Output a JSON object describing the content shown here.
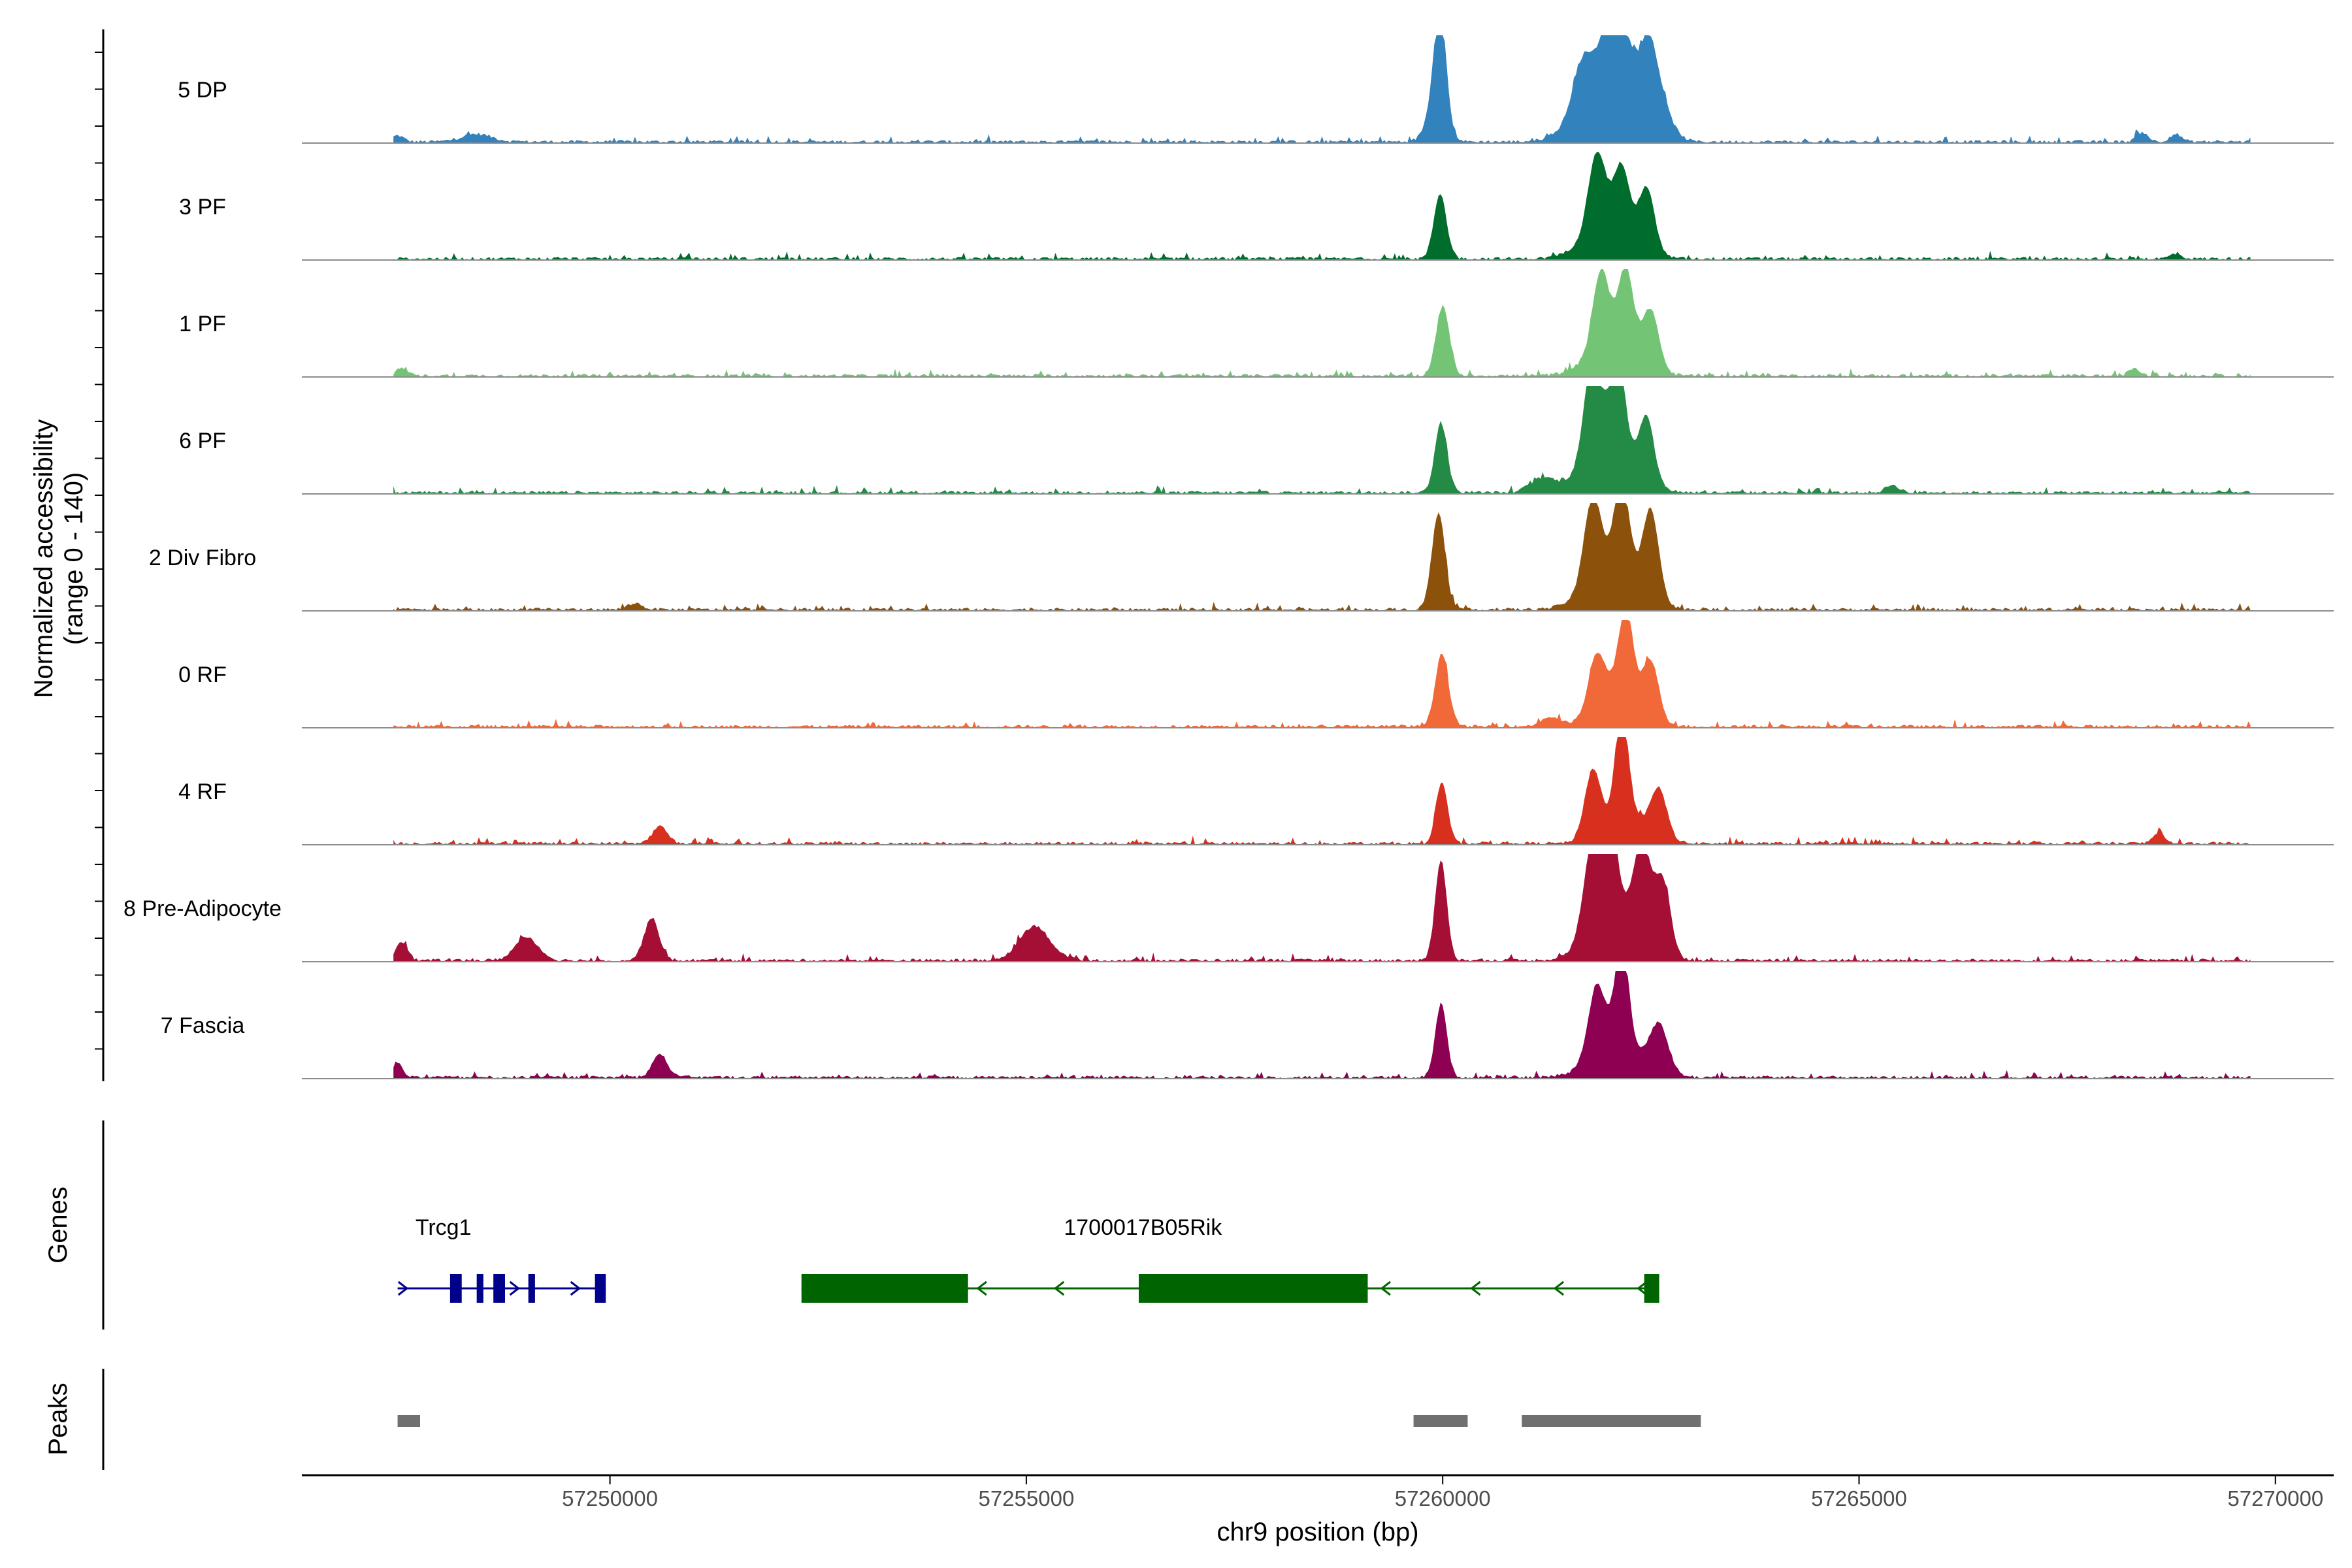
{
  "chart_data": {
    "type": "area",
    "title": "",
    "x_axis": {
      "label": "chr9 position (bp)",
      "range": [
        57246300,
        57270700
      ],
      "ticks": [
        57250000,
        57255000,
        57260000,
        57265000,
        57270000
      ],
      "tick_labels": [
        "57250000",
        "57255000",
        "57260000",
        "57265000",
        "57270000"
      ]
    },
    "y_axis": {
      "label_line1": "Normalized accessibility",
      "label_line2": "(range 0 - 140)",
      "range": [
        0,
        140
      ]
    },
    "coverage_x_range": [
      57247400,
      57269700
    ],
    "tracks": [
      {
        "name": "5 DP",
        "color": "#3182BD",
        "peaks": [
          [
            57247450,
            8,
            70
          ],
          [
            57248400,
            10,
            180
          ],
          [
            57259970,
            125,
            70
          ],
          [
            57259930,
            55,
            110
          ],
          [
            57261700,
            70,
            130
          ],
          [
            57262000,
            100,
            100
          ],
          [
            57262200,
            85,
            90
          ],
          [
            57262450,
            80,
            110
          ],
          [
            57261900,
            55,
            300
          ],
          [
            57262550,
            60,
            160
          ],
          [
            57268400,
            12,
            70
          ],
          [
            57268800,
            10,
            70
          ]
        ]
      },
      {
        "name": "3 PF",
        "color": "#006D2C",
        "peaks": [
          [
            57259970,
            85,
            75
          ],
          [
            57261850,
            98,
            100
          ],
          [
            57262150,
            80,
            90
          ],
          [
            57262450,
            80,
            95
          ],
          [
            57262000,
            50,
            280
          ],
          [
            57268800,
            6,
            70
          ]
        ]
      },
      {
        "name": "1 PF",
        "color": "#74C476",
        "peaks": [
          [
            57260000,
            90,
            80
          ],
          [
            57261900,
            100,
            95
          ],
          [
            57262200,
            105,
            90
          ],
          [
            57262500,
            75,
            95
          ],
          [
            57262050,
            45,
            280
          ],
          [
            57247500,
            10,
            60
          ],
          [
            57268300,
            10,
            60
          ]
        ]
      },
      {
        "name": "6 PF",
        "color": "#238B45",
        "peaks": [
          [
            57259980,
            90,
            75
          ],
          [
            57261800,
            130,
            100
          ],
          [
            57262100,
            125,
            90
          ],
          [
            57262450,
            80,
            90
          ],
          [
            57262000,
            60,
            300
          ],
          [
            57261200,
            18,
            150
          ],
          [
            57265400,
            10,
            80
          ]
        ]
      },
      {
        "name": "2 Div Fibro",
        "color": "#8C510A",
        "peaks": [
          [
            57259950,
            125,
            80
          ],
          [
            57261800,
            112,
            100
          ],
          [
            57262150,
            118,
            90
          ],
          [
            57262500,
            115,
            95
          ],
          [
            57262050,
            55,
            300
          ],
          [
            57250300,
            8,
            90
          ]
        ]
      },
      {
        "name": "0 RF",
        "color": "#F16939",
        "peaks": [
          [
            57259990,
            95,
            80
          ],
          [
            57261850,
            70,
            100
          ],
          [
            57262200,
            115,
            90
          ],
          [
            57262500,
            75,
            95
          ],
          [
            57262100,
            42,
            250
          ],
          [
            57261300,
            12,
            120
          ]
        ]
      },
      {
        "name": "4 RF",
        "color": "#D7301F",
        "peaks": [
          [
            57259990,
            80,
            70
          ],
          [
            57261800,
            85,
            95
          ],
          [
            57262150,
            140,
            75
          ],
          [
            57262600,
            60,
            95
          ],
          [
            57262200,
            40,
            260
          ],
          [
            57250600,
            22,
            90
          ],
          [
            57268600,
            14,
            70
          ]
        ]
      },
      {
        "name": "8 Pre-Adipocyte",
        "color": "#A50F36",
        "peaks": [
          [
            57259980,
            130,
            70
          ],
          [
            57261800,
            120,
            110
          ],
          [
            57262000,
            135,
            95
          ],
          [
            57262400,
            120,
            110
          ],
          [
            57262650,
            90,
            90
          ],
          [
            57262100,
            55,
            300
          ],
          [
            57250500,
            55,
            90
          ],
          [
            57255100,
            45,
            180
          ],
          [
            57249000,
            30,
            140
          ],
          [
            57247500,
            25,
            70
          ]
        ]
      },
      {
        "name": "7 Fascia",
        "color": "#8E0152",
        "peaks": [
          [
            57259980,
            95,
            70
          ],
          [
            57261850,
            90,
            100
          ],
          [
            57262150,
            135,
            80
          ],
          [
            57262600,
            60,
            110
          ],
          [
            57262100,
            45,
            300
          ],
          [
            57250600,
            30,
            90
          ],
          [
            57247450,
            20,
            60
          ]
        ]
      }
    ],
    "genes": [
      {
        "name": "Trcg1",
        "strand": "+",
        "color": "#00008B",
        "label_pos": 57248000,
        "line": [
          57247450,
          57249950
        ],
        "exons": [
          [
            57248080,
            57248220
          ],
          [
            57248400,
            57248480
          ],
          [
            57248600,
            57248740
          ],
          [
            57249020,
            57249100
          ],
          [
            57249820,
            57249950
          ]
        ],
        "arrows": [
          57247530,
          57248870,
          57249600
        ]
      },
      {
        "name": "1700017B05Rik",
        "strand": "-",
        "color": "#006400",
        "label_pos": 57256400,
        "line": [
          57252300,
          57262600
        ],
        "exons": [
          [
            57252300,
            57254300
          ],
          [
            57256350,
            57259100
          ],
          [
            57262420,
            57262600
          ]
        ],
        "arrows": [
          57254450,
          57255380,
          57259300,
          57260380,
          57261380,
          57262380
        ]
      }
    ],
    "peaks_track": {
      "name": "Peaks",
      "color": "#707070",
      "intervals": [
        [
          57247450,
          57247720
        ],
        [
          57259650,
          57260300
        ],
        [
          57260950,
          57263100
        ]
      ]
    },
    "panel_labels": {
      "genes": "Genes",
      "peaks": "Peaks"
    }
  }
}
